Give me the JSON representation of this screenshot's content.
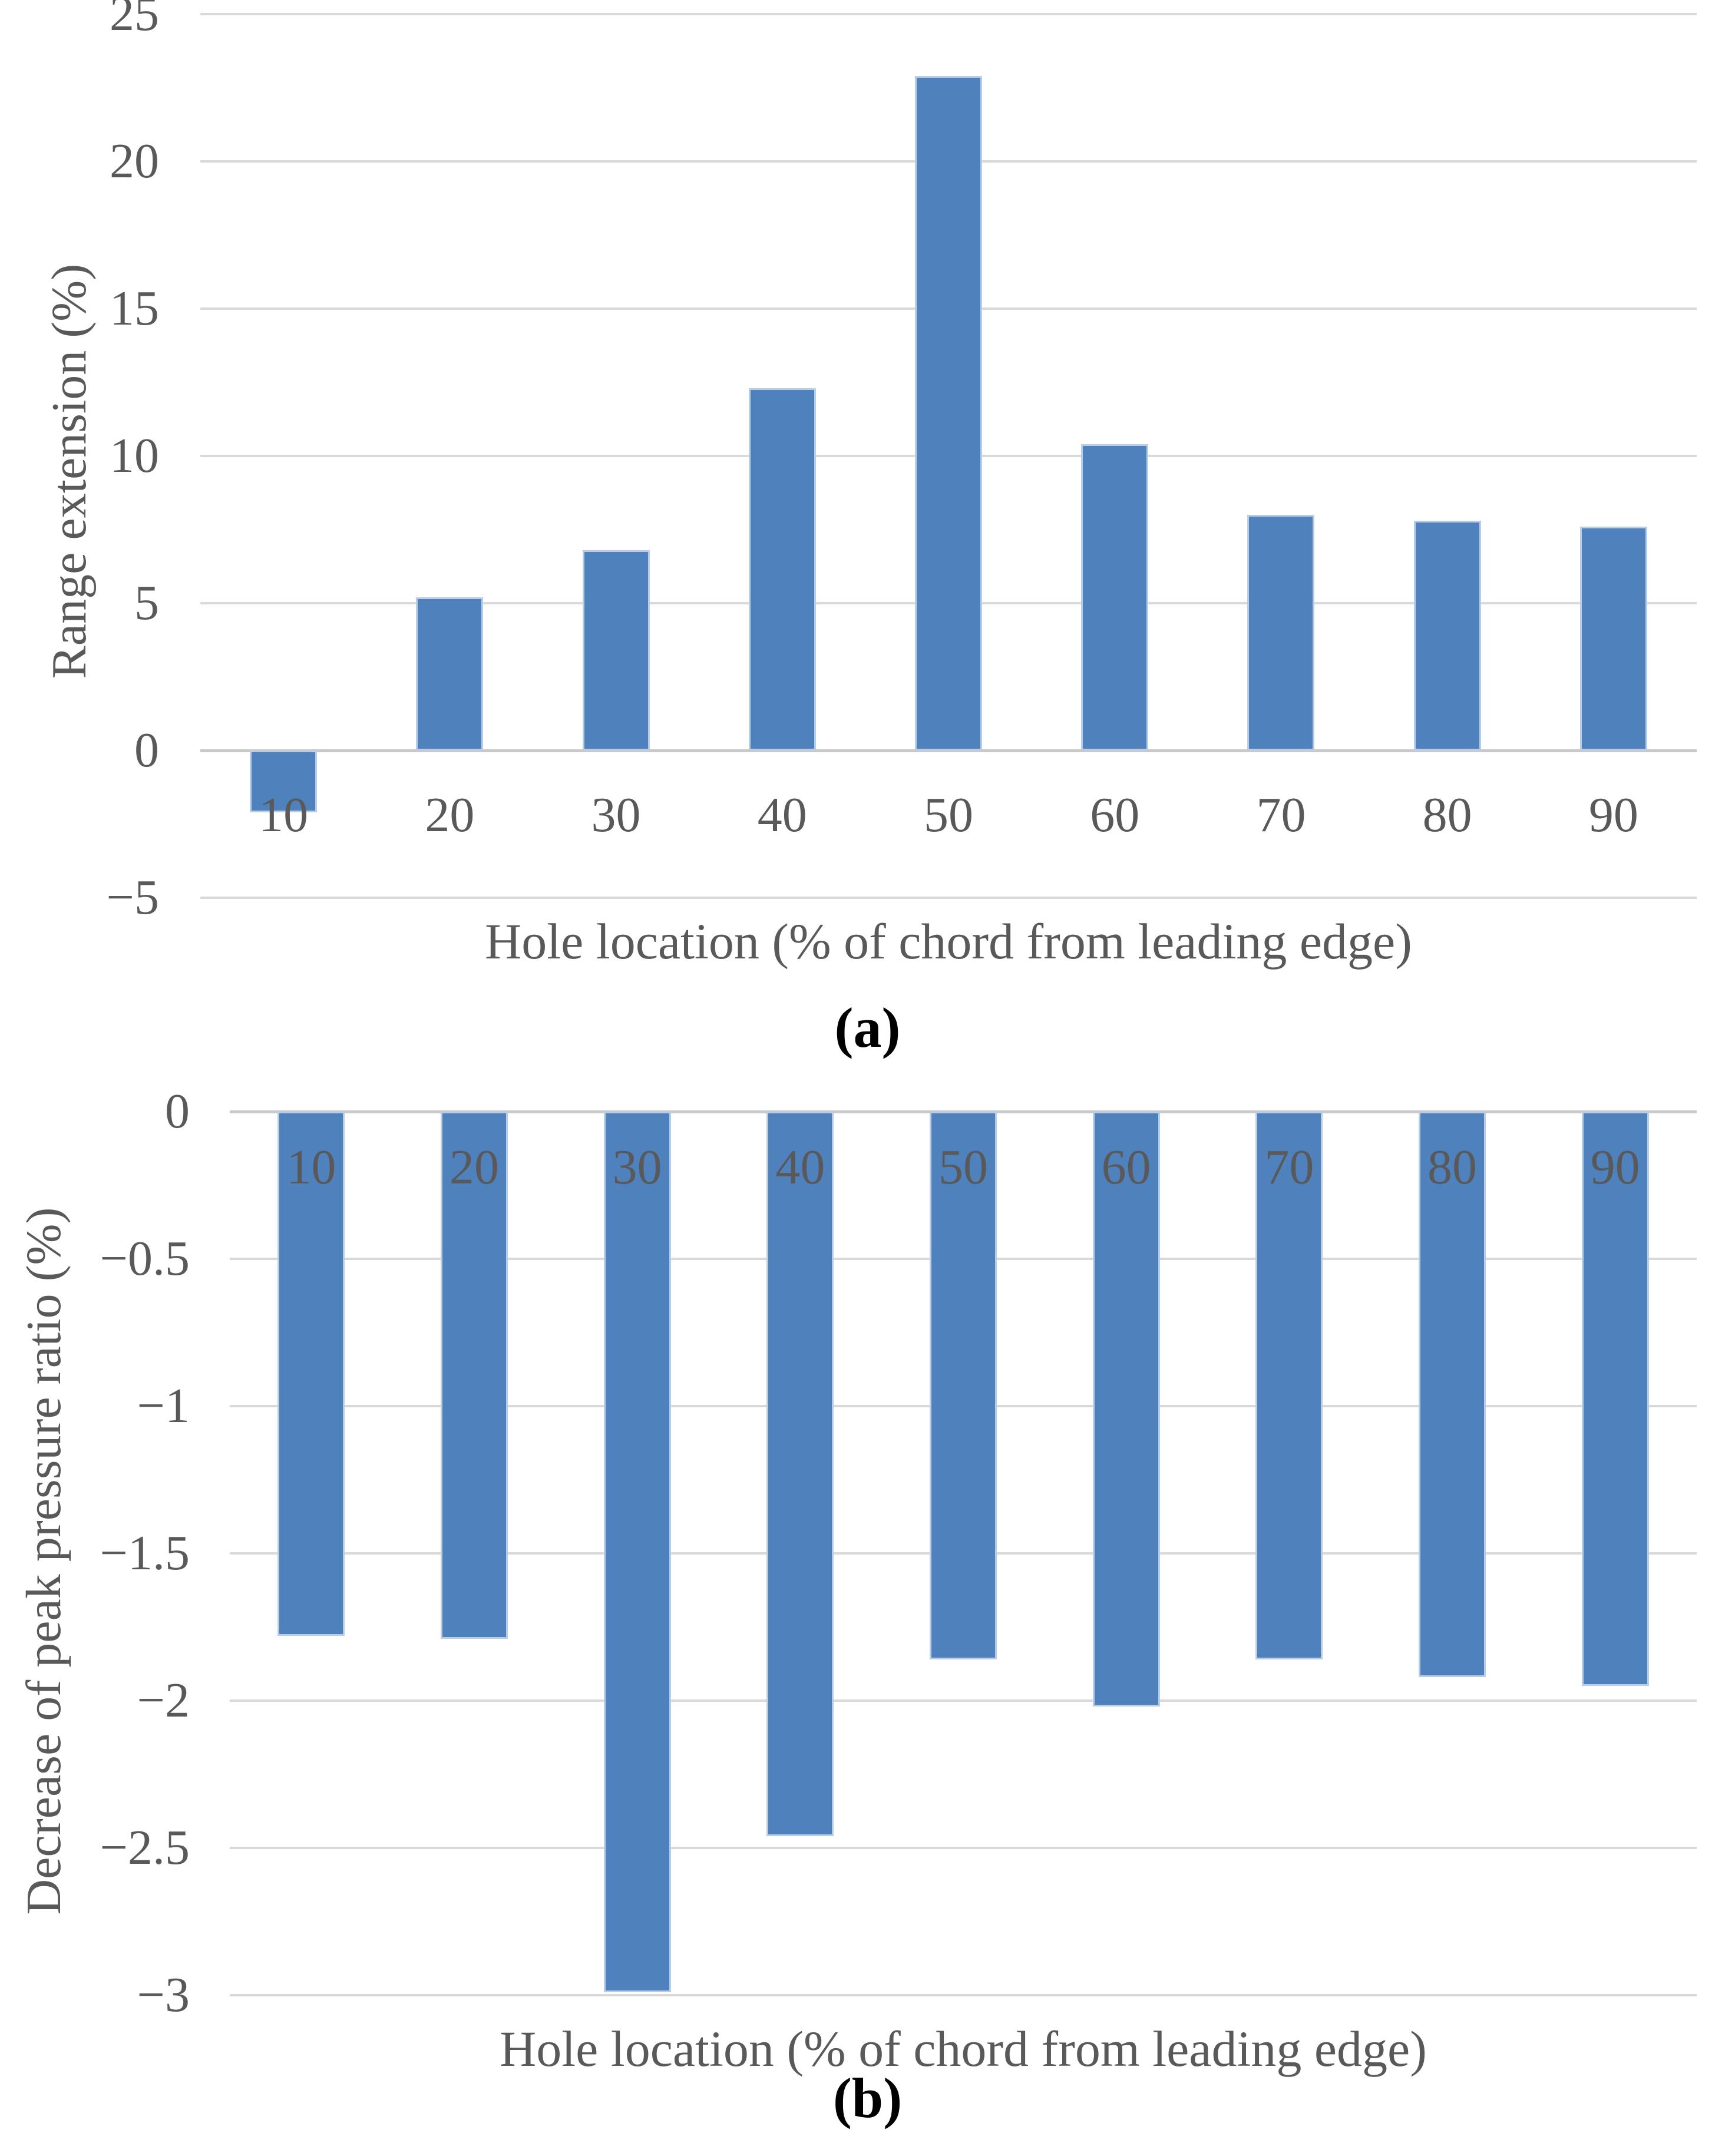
{
  "colors": {
    "bar_fill": "#4F81BD",
    "bar_edge": "#b9cde6",
    "gridline": "#d9d9d9",
    "zero_line": "#c9c9c9",
    "axis_text": "#595959",
    "caption_text": "#000000",
    "background": "#ffffff"
  },
  "chart_data": [
    {
      "id": "a",
      "type": "bar",
      "title": "",
      "caption": "(a)",
      "xlabel": "Hole location (% of chord from leading edge)",
      "ylabel": "Range extension (%)",
      "categories": [
        "10",
        "20",
        "30",
        "40",
        "50",
        "60",
        "70",
        "80",
        "90"
      ],
      "values": [
        -2.1,
        5.2,
        6.8,
        12.3,
        22.9,
        10.4,
        8.0,
        7.8,
        7.6
      ],
      "ylim": [
        -5,
        25
      ],
      "y_tick_step": 5,
      "y_ticks": [
        "25",
        "20",
        "15",
        "10",
        "5",
        "0",
        "−5"
      ],
      "grid": true,
      "legend": "none",
      "category_label_position": "below-axis"
    },
    {
      "id": "b",
      "type": "bar",
      "title": "",
      "caption": "(b)",
      "xlabel": "Hole location (% of chord from leading edge)",
      "ylabel": "Decrease of peak pressure ratio (%)",
      "categories": [
        "10",
        "20",
        "30",
        "40",
        "50",
        "60",
        "70",
        "80",
        "90"
      ],
      "values": [
        -1.78,
        -1.79,
        -2.99,
        -2.46,
        -1.86,
        -2.02,
        -1.86,
        -1.92,
        -1.95
      ],
      "ylim": [
        -3,
        0
      ],
      "y_tick_step": 0.5,
      "y_ticks": [
        "0",
        "−0.5",
        "−1",
        "−1.5",
        "−2",
        "−2.5",
        "−3"
      ],
      "grid": true,
      "legend": "none",
      "category_label_position": "inside-bar-top"
    }
  ]
}
